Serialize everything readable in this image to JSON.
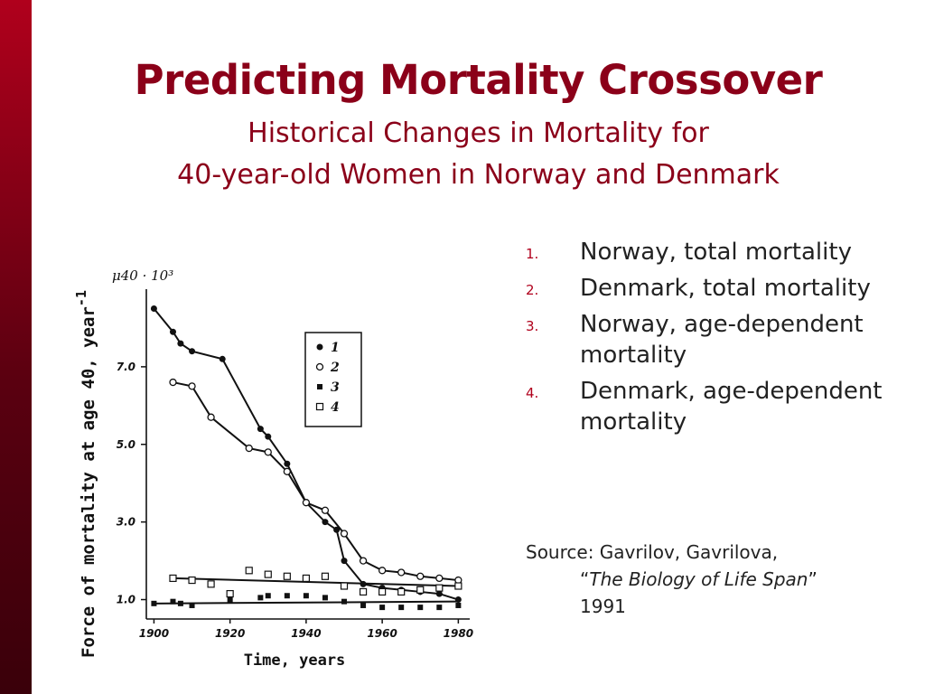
{
  "slide": {
    "title": "Predicting Mortality Crossover",
    "subtitle_line1": "Historical Changes in Mortality for",
    "subtitle_line2": "40-year-old Women in Norway and Denmark",
    "bar_color": "#8b0019"
  },
  "legend_list": [
    {
      "num": "1.",
      "text": "Norway, total mortality"
    },
    {
      "num": "2.",
      "text": "Denmark, total mortality"
    },
    {
      "num": "3.",
      "text": "Norway, age-dependent mortality"
    },
    {
      "num": "4.",
      "text": "Denmark, age-dependent mortality"
    }
  ],
  "source": {
    "prefix": "Source: Gavrilov, Gavrilova,",
    "open_quote": "“",
    "book": "The Biology of Life Span",
    "close_quote": "”",
    "year": "1991"
  },
  "chart_data": {
    "type": "line",
    "ylabel": "Force of mortality at age 40, year",
    "ylabel_sup": "-1",
    "xlabel": "Time, years",
    "y_unit_label": "μ40 · 10³",
    "xlim": [
      1898,
      1983
    ],
    "ylim": [
      0.5,
      9.0
    ],
    "x_ticks": [
      1900,
      1920,
      1940,
      1960,
      1980
    ],
    "x_tick_labels": [
      "1900",
      "1920",
      "1940",
      "1960",
      "1980"
    ],
    "y_ticks": [
      1.0,
      3.0,
      5.0,
      7.0
    ],
    "y_tick_labels": [
      "1.0",
      "3.0",
      "5.0",
      "7.0"
    ],
    "legend_entries": [
      "1",
      "2",
      "3",
      "4"
    ],
    "series": [
      {
        "name": "1",
        "marker": "filled-circle",
        "connected": true,
        "x": [
          1900,
          1905,
          1907,
          1910,
          1918,
          1928,
          1930,
          1935,
          1940,
          1945,
          1948,
          1950,
          1955,
          1960,
          1965,
          1970,
          1975,
          1980
        ],
        "y": [
          8.5,
          7.9,
          7.6,
          7.4,
          7.2,
          5.4,
          5.2,
          4.5,
          3.5,
          3.0,
          2.8,
          2.0,
          1.4,
          1.3,
          1.25,
          1.2,
          1.15,
          1.0
        ]
      },
      {
        "name": "2",
        "marker": "open-circle",
        "connected": true,
        "x": [
          1905,
          1910,
          1915,
          1925,
          1930,
          1935,
          1940,
          1945,
          1950,
          1955,
          1960,
          1965,
          1970,
          1975,
          1980
        ],
        "y": [
          6.6,
          6.5,
          5.7,
          4.9,
          4.8,
          4.3,
          3.5,
          3.3,
          2.7,
          2.0,
          1.75,
          1.7,
          1.6,
          1.55,
          1.5
        ]
      },
      {
        "name": "3",
        "marker": "filled-square",
        "connected": false,
        "x": [
          1900,
          1905,
          1907,
          1910,
          1920,
          1928,
          1930,
          1935,
          1940,
          1945,
          1950,
          1955,
          1960,
          1965,
          1970,
          1975,
          1980
        ],
        "y": [
          0.9,
          0.95,
          0.9,
          0.85,
          1.0,
          1.05,
          1.1,
          1.1,
          1.1,
          1.05,
          0.95,
          0.85,
          0.8,
          0.8,
          0.8,
          0.8,
          0.85
        ]
      },
      {
        "name": "4",
        "marker": "open-square",
        "connected": false,
        "x": [
          1905,
          1910,
          1915,
          1920,
          1925,
          1930,
          1935,
          1940,
          1945,
          1950,
          1955,
          1960,
          1965,
          1970,
          1975,
          1980
        ],
        "y": [
          1.55,
          1.5,
          1.4,
          1.15,
          1.75,
          1.65,
          1.6,
          1.55,
          1.6,
          1.35,
          1.2,
          1.2,
          1.2,
          1.25,
          1.3,
          1.35
        ]
      }
    ],
    "trend_lines": [
      {
        "series": "3",
        "x": [
          1900,
          1980
        ],
        "y": [
          0.9,
          0.95
        ]
      },
      {
        "series": "4",
        "x": [
          1905,
          1980
        ],
        "y": [
          1.55,
          1.35
        ]
      }
    ]
  }
}
